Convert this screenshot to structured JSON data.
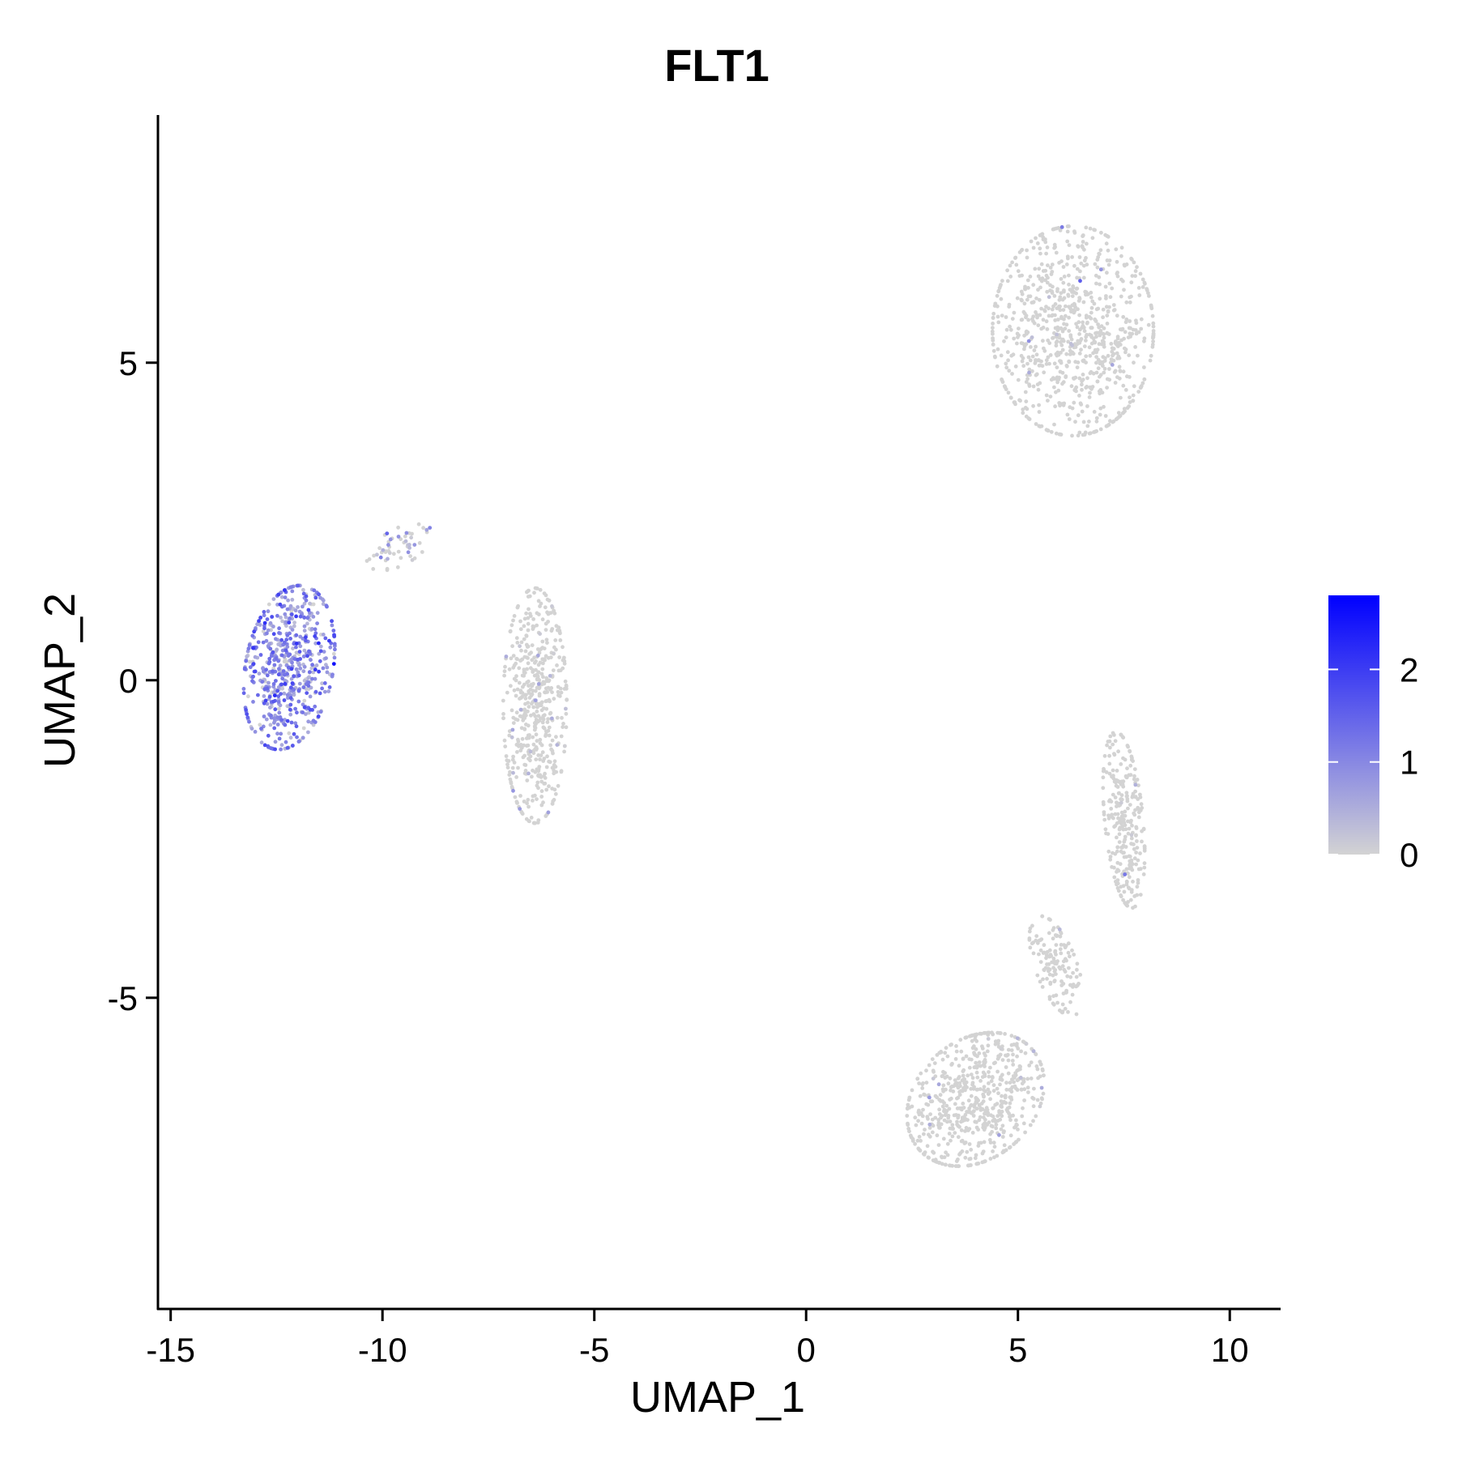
{
  "chart_data": {
    "type": "scatter",
    "title": "FLT1",
    "xlabel": "UMAP_1",
    "ylabel": "UMAP_2",
    "xlim": [
      -15.3,
      11.2
    ],
    "ylim": [
      -9.9,
      8.9
    ],
    "x_ticks": [
      -15,
      -10,
      -5,
      0,
      5,
      10
    ],
    "y_ticks": [
      -5,
      0,
      5
    ],
    "x_tick_labels": [
      "-15",
      "-10",
      "-5",
      "0",
      "5",
      "10"
    ],
    "y_tick_labels": [
      "-5",
      "0",
      "5"
    ],
    "grid": false,
    "legend": {
      "placement": "right",
      "type": "colorbar",
      "range": [
        0,
        2.8
      ],
      "ticks": [
        0,
        1,
        2
      ],
      "tick_labels": [
        "0",
        "1",
        "2"
      ],
      "low_color": "#d3d3d3",
      "high_color": "#0000ff"
    },
    "clusters": [
      {
        "name": "",
        "center": [
          -12.2,
          0.2
        ],
        "spread": [
          1.0,
          1.35
        ],
        "tilt": -0.45,
        "n": 600,
        "expr_mean": 0.9
      },
      {
        "name": "",
        "center": [
          -9.6,
          2.1
        ],
        "spread": [
          0.8,
          0.3
        ],
        "tilt": 0.3,
        "n": 55,
        "expr_mean": 0.45
      },
      {
        "name": "",
        "center": [
          -6.4,
          -0.4
        ],
        "spread": [
          0.75,
          1.85
        ],
        "tilt": 0.0,
        "n": 520,
        "expr_mean": 0.05
      },
      {
        "name": "",
        "center": [
          6.3,
          5.5
        ],
        "spread": [
          1.9,
          1.65
        ],
        "tilt": 0.0,
        "n": 850,
        "expr_mean": 0.01
      },
      {
        "name": "",
        "center": [
          4.0,
          -6.6
        ],
        "spread": [
          1.65,
          1.0
        ],
        "tilt": 0.25,
        "n": 650,
        "expr_mean": 0.02
      },
      {
        "name": "",
        "center": [
          7.5,
          -2.2
        ],
        "spread": [
          0.45,
          1.4
        ],
        "tilt": 0.15,
        "n": 280,
        "expr_mean": 0.01
      },
      {
        "name": "",
        "center": [
          5.9,
          -4.5
        ],
        "spread": [
          0.45,
          0.9
        ],
        "tilt": 0.6,
        "n": 140,
        "expr_mean": 0.01
      }
    ]
  }
}
